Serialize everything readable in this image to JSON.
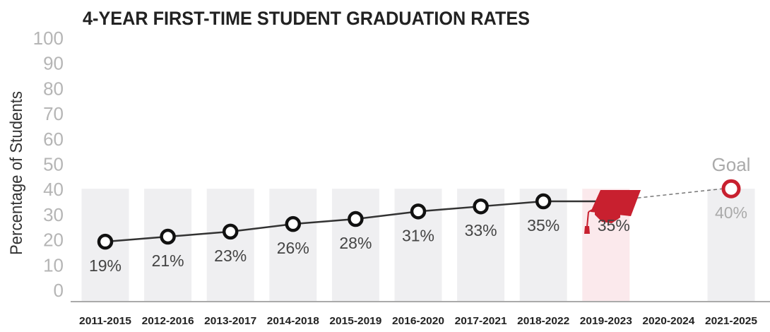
{
  "chart_data": {
    "type": "line",
    "title": "4-YEAR FIRST-TIME STUDENT GRADUATION RATES",
    "ylabel": "Percentage of Students",
    "xlabel": "",
    "ylim": [
      0,
      100
    ],
    "yticks": [
      "0",
      "10",
      "20",
      "30",
      "40",
      "50",
      "60",
      "70",
      "80",
      "90",
      "100"
    ],
    "categories": [
      "2011-2015",
      "2012-2016",
      "2013-2017",
      "2014-2018",
      "2015-2019",
      "2016-2020",
      "2017-2021",
      "2018-2022",
      "2019-2023",
      "2020-2024",
      "2021-2025"
    ],
    "series": [
      {
        "values": [
          19,
          21,
          23,
          26,
          28,
          31,
          33,
          35,
          35,
          null,
          null
        ],
        "labels": [
          "19%",
          "21%",
          "23%",
          "26%",
          "28%",
          "31%",
          "33%",
          "35%",
          "35%",
          "",
          ""
        ]
      }
    ],
    "goal": {
      "category": "2021-2025",
      "value": 40,
      "label": "Goal",
      "value_label": "40%"
    },
    "grid": false,
    "legend": "none",
    "colors": {
      "title": "#222222",
      "tick": "#b5b5b5",
      "ylabel": "#333333",
      "category": "#222222",
      "column": "#efeff1",
      "highlight_column": "#fbe9ec",
      "line": "#333333",
      "marker": "#111111",
      "value_label": "#444444",
      "goal": "#c8202f",
      "goal_text": "#aaaaaa",
      "axis": "#aaaaaa",
      "cap": "#c8202f"
    },
    "highlight_category": "2019-2023",
    "icons": [
      "graduation-cap-icon"
    ]
  }
}
